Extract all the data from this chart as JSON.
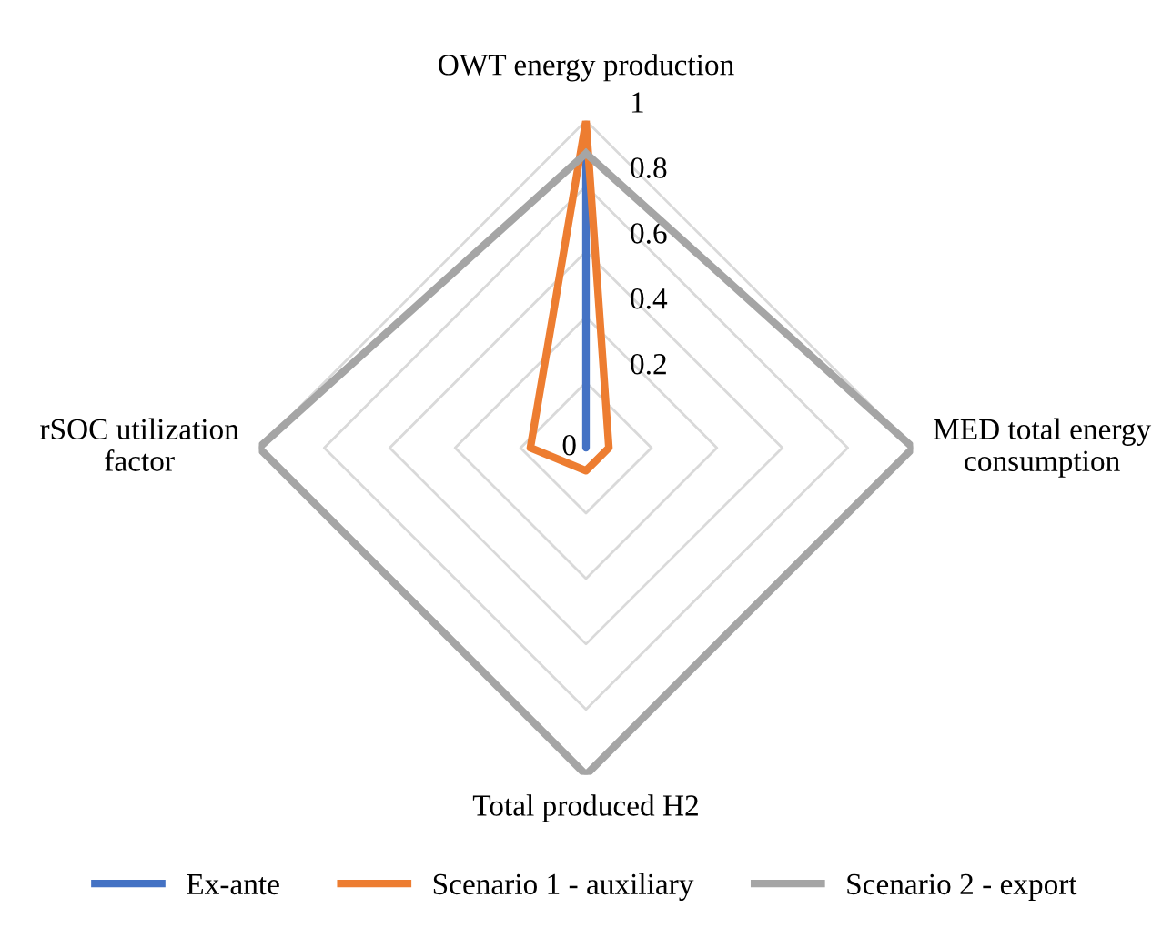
{
  "chart_data": {
    "type": "radar",
    "categories": [
      "OWT energy production",
      "MED total energy consumption",
      "Total produced H2",
      "rSOC utilization factor"
    ],
    "series": [
      {
        "name": "Ex-ante",
        "color": "#4472c4",
        "values": [
          0.9,
          0,
          0,
          0
        ]
      },
      {
        "name": "Scenario 1 - auxiliary",
        "color": "#ed7d31",
        "values": [
          1,
          0.07,
          0.07,
          0.17
        ]
      },
      {
        "name": "Scenario 2 - export",
        "color": "#a5a5a5",
        "values": [
          0.9,
          1,
          1,
          1
        ]
      }
    ],
    "ylim": [
      0,
      1
    ],
    "yticks": [
      0,
      0.2,
      0.4,
      0.6,
      0.8,
      1
    ],
    "grid": true,
    "legend": "bottom",
    "marker": "none",
    "line_style": "solid"
  }
}
